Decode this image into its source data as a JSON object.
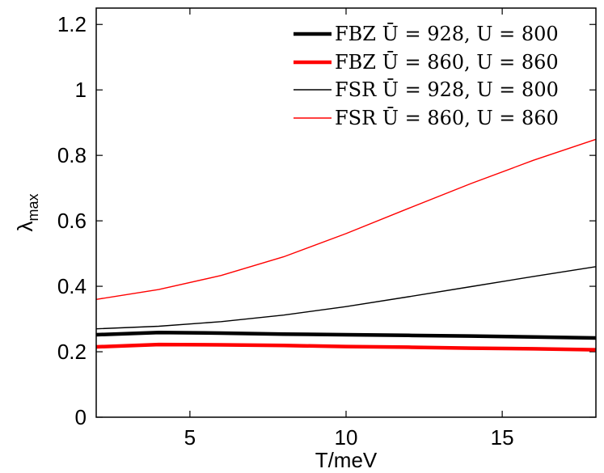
{
  "chart_data": {
    "type": "line",
    "xlabel": "T/meV",
    "ylabel": "λ",
    "ylabel_subscript": "max",
    "xlim": [
      2,
      18
    ],
    "ylim": [
      0,
      1.25
    ],
    "xticks": [
      5,
      10,
      15
    ],
    "yticks": [
      0,
      0.2,
      0.4,
      0.6,
      0.8,
      1,
      1.2
    ],
    "ytick_labels": [
      "0",
      "0.2",
      "0.4",
      "0.6",
      "0.8",
      "1",
      "1.2"
    ],
    "xtick_labels": [
      "5",
      "10",
      "15"
    ],
    "legend_position": "top-right",
    "grid": false,
    "series": [
      {
        "name": "FBZ Ū = 928, U = 800",
        "color": "#000000",
        "style": "thick",
        "x": [
          2,
          4,
          6,
          8,
          10,
          12,
          14,
          16,
          18
        ],
        "y": [
          0.252,
          0.259,
          0.257,
          0.254,
          0.252,
          0.25,
          0.248,
          0.245,
          0.242
        ]
      },
      {
        "name": "FBZ Ū = 860, U = 860",
        "color": "#ff0000",
        "style": "thick",
        "x": [
          2,
          4,
          6,
          8,
          10,
          12,
          14,
          16,
          18
        ],
        "y": [
          0.215,
          0.222,
          0.221,
          0.219,
          0.216,
          0.214,
          0.211,
          0.209,
          0.206
        ]
      },
      {
        "name": "FSR Ū = 928, U = 800",
        "color": "#000000",
        "style": "thin",
        "x": [
          2,
          4,
          6,
          8,
          10,
          12,
          14,
          16,
          18
        ],
        "y": [
          0.27,
          0.278,
          0.292,
          0.312,
          0.338,
          0.368,
          0.399,
          0.43,
          0.46
        ]
      },
      {
        "name": "FSR Ū = 860, U = 860",
        "color": "#ff0000",
        "style": "thin",
        "x": [
          2,
          4,
          6,
          8,
          10,
          12,
          14,
          16,
          18
        ],
        "y": [
          0.36,
          0.39,
          0.433,
          0.49,
          0.561,
          0.638,
          0.714,
          0.785,
          0.849
        ]
      }
    ]
  }
}
